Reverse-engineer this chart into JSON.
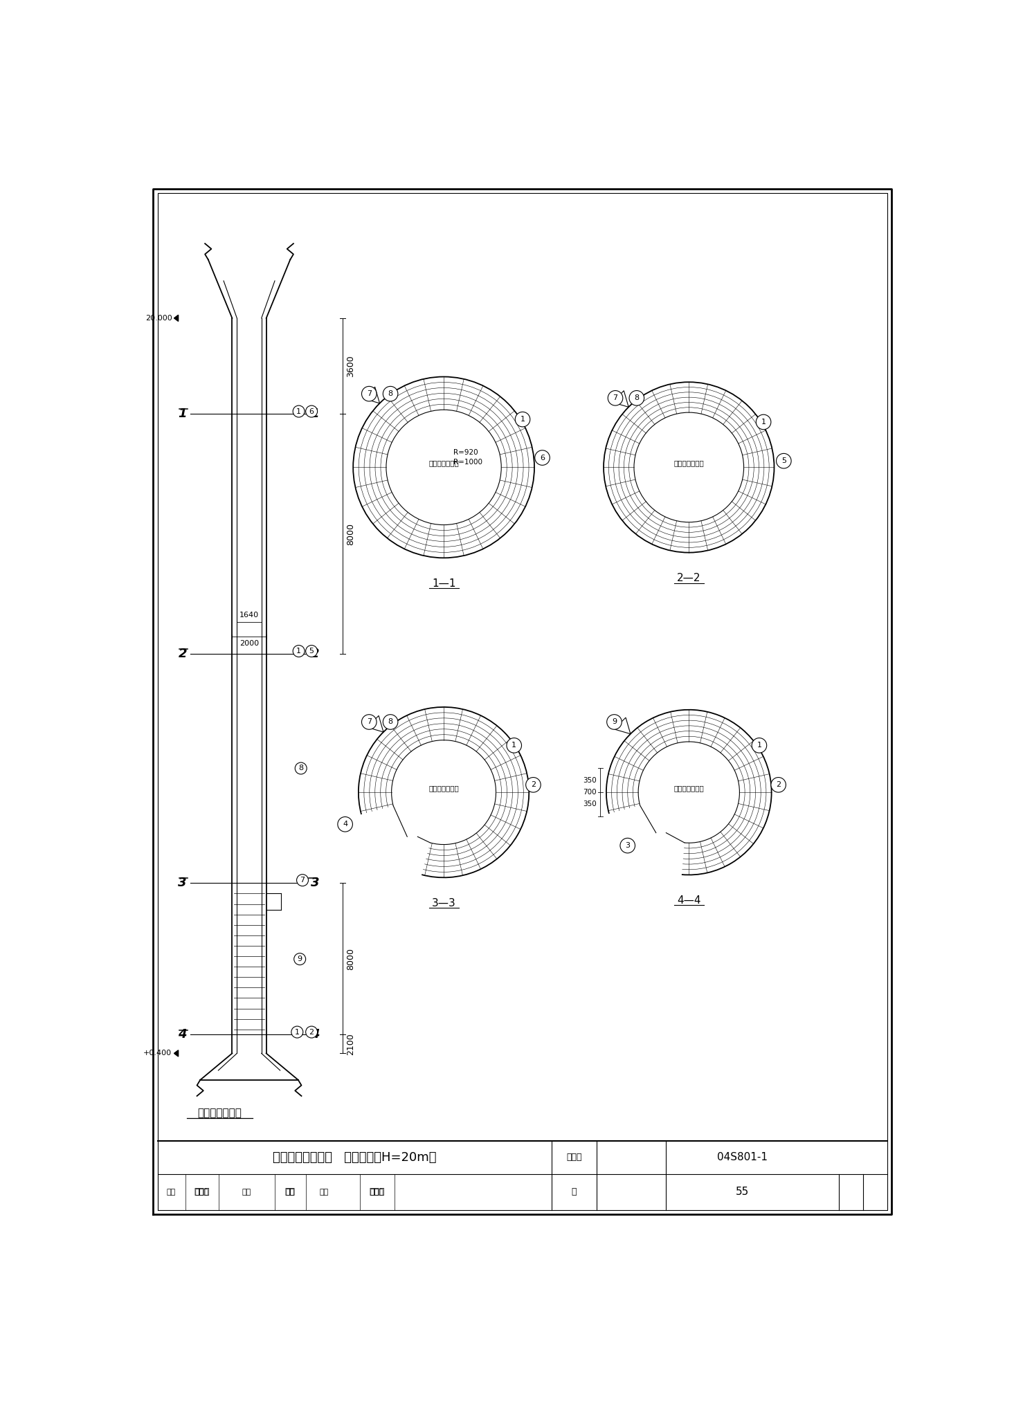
{
  "title": "支筒结构图（一）   （现浇方案H=20m）",
  "atlas_no": "04S801-1",
  "page": "55",
  "caption": "支筒配筋剖面图",
  "bg_color": "#ffffff",
  "line_color": "#000000",
  "elevation_top": "20.000",
  "elevation_bot": "+0.400",
  "dims": {
    "3600": "3600",
    "8000": "8000",
    "2100": "2100",
    "1640": "1640",
    "2000": "2000",
    "700": "700",
    "350": "350"
  },
  "R_outer": "R=920",
  "R_inner": "R=1000",
  "label_fangshui": "兼作防雷引下线",
  "section_labels": [
    "1-1",
    "2-2",
    "3-3",
    "4-4"
  ],
  "title_block": {
    "main_title": "支筒结构图（一）   （现浇方案H=20m）",
    "atlas_label": "图集号",
    "atlas_no": "04S801-1",
    "row2": [
      "审核",
      "宋组先",
      "校对",
      "何迅",
      "设计",
      "尹华容",
      "页",
      "55"
    ]
  }
}
